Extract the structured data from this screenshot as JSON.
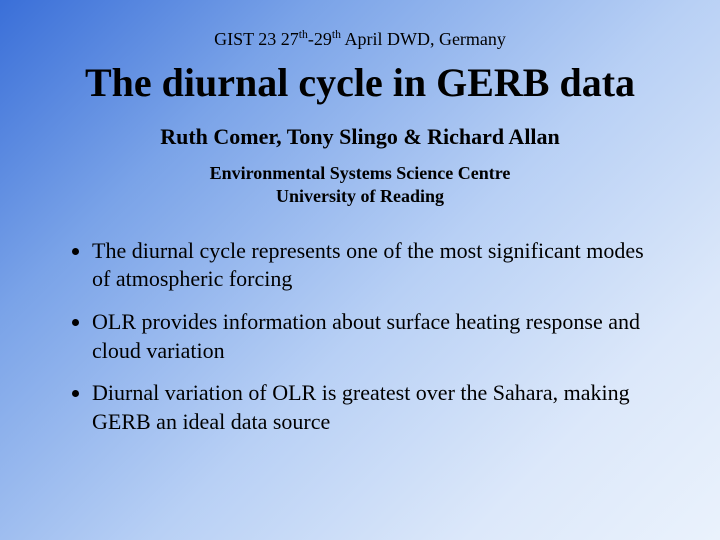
{
  "header": {
    "prefix": "GIST 23 27",
    "sup1": "th",
    "mid": "-29",
    "sup2": "th",
    "suffix": " April DWD, Germany"
  },
  "title": "The diurnal cycle in GERB data",
  "authors": "Ruth Comer, Tony Slingo & Richard Allan",
  "affiliation_line1": "Environmental Systems Science Centre",
  "affiliation_line2": "University of Reading",
  "bullets": [
    "The diurnal cycle represents one of the most significant modes of atmospheric forcing",
    "OLR provides information about surface heating response and cloud variation",
    "Diurnal variation of OLR is greatest over the Sahara, making GERB an ideal data source"
  ],
  "style": {
    "background_gradient": [
      "#3a6fd8",
      "#7aa3e8",
      "#b8d0f5",
      "#dce8fa",
      "#eaf2fc"
    ],
    "text_color": "#000000",
    "title_fontsize": 40,
    "header_fontsize": 18,
    "authors_fontsize": 22,
    "affiliation_fontsize": 18,
    "bullet_fontsize": 22,
    "font_family": "Times New Roman"
  }
}
